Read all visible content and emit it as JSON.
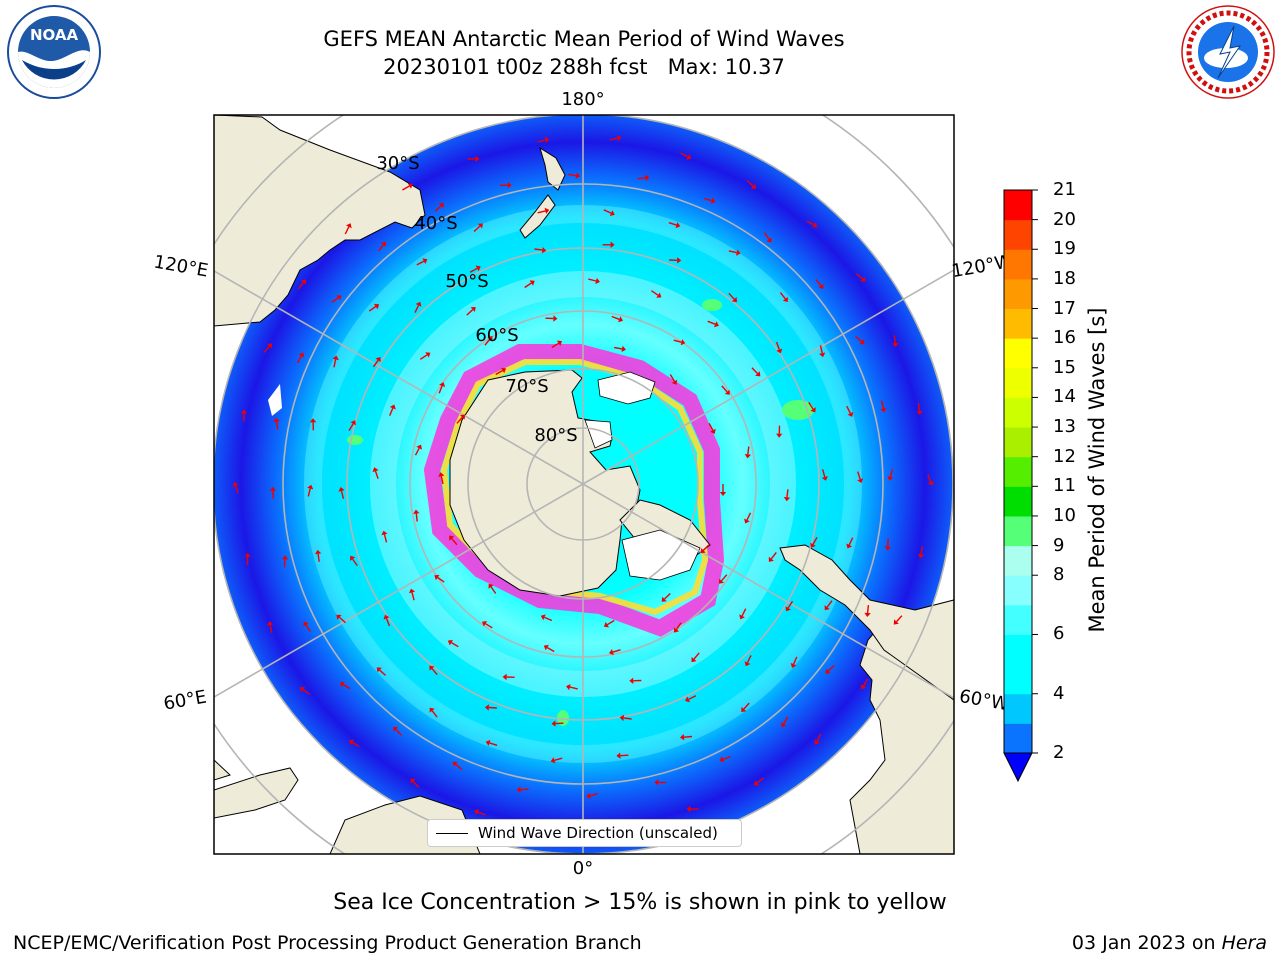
{
  "title": {
    "line1": "GEFS MEAN Antarctic Mean Period of Wind Waves",
    "line2": "20230101 t00z 288h fcst   Max: 10.37"
  },
  "map": {
    "longitude_labels": {
      "top": "180°",
      "bottom": "0°",
      "left_upper": "120°E",
      "left_lower": "60°E",
      "right_upper": "120°W",
      "right_lower": "60°W"
    },
    "latitude_labels": [
      "30°S",
      "40°S",
      "50°S",
      "60°S",
      "70°S",
      "80°S"
    ]
  },
  "legend": {
    "label": "Wind Wave Direction (unscaled)"
  },
  "colorbar": {
    "label": "Mean Period of Wind Waves [s]",
    "ticks": [
      "21",
      "20",
      "19",
      "18",
      "17",
      "16",
      "15",
      "14",
      "13",
      "12",
      "11",
      "10",
      "9",
      "8",
      "6",
      "4",
      "2"
    ],
    "bands": [
      {
        "from": 2,
        "to": 3,
        "color": "#0a74ff"
      },
      {
        "from": 3,
        "to": 4,
        "color": "#00c8ff"
      },
      {
        "from": 4,
        "to": 5,
        "color": "#00ffff"
      },
      {
        "from": 5,
        "to": 6,
        "color": "#00ffff"
      },
      {
        "from": 6,
        "to": 7,
        "color": "#44ffff"
      },
      {
        "from": 7,
        "to": 8,
        "color": "#88ffff"
      },
      {
        "from": 8,
        "to": 9,
        "color": "#aaffee"
      },
      {
        "from": 9,
        "to": 10,
        "color": "#55ff77"
      },
      {
        "from": 10,
        "to": 11,
        "color": "#00dd00"
      },
      {
        "from": 11,
        "to": 12,
        "color": "#55ee00"
      },
      {
        "from": 12,
        "to": 13,
        "color": "#aaee00"
      },
      {
        "from": 13,
        "to": 14,
        "color": "#ccff00"
      },
      {
        "from": 14,
        "to": 15,
        "color": "#eeff00"
      },
      {
        "from": 15,
        "to": 16,
        "color": "#ffff00"
      },
      {
        "from": 16,
        "to": 17,
        "color": "#ffbb00"
      },
      {
        "from": 17,
        "to": 18,
        "color": "#ff9900"
      },
      {
        "from": 18,
        "to": 19,
        "color": "#ff7700"
      },
      {
        "from": 19,
        "to": 20,
        "color": "#ff4400"
      },
      {
        "from": 20,
        "to": 21,
        "color": "#ff0000"
      }
    ],
    "under_color": "#0000ff"
  },
  "note": "Sea Ice Concentration > 15% is shown in pink to yellow",
  "footer": {
    "left": "NCEP/EMC/Verification Post Processing Product Generation Branch",
    "right_date": "03 Jan 2023 on ",
    "right_host": "Hera"
  },
  "logos": {
    "noaa": "NOAA",
    "nws": "NATIONAL WEATHER SERVICE"
  },
  "colors": {
    "land": "#eeecd9",
    "ocean_low": "#0a74ff",
    "ocean_deep": "#1b17e6",
    "ocean_mid": "#00ffff",
    "ocean_light": "#88ffff",
    "sea_ice_pink": "#ff33dd",
    "sea_ice_yellow": "#ffdd33",
    "arrow": "#ee0000",
    "grid": "#b5b5b5"
  }
}
